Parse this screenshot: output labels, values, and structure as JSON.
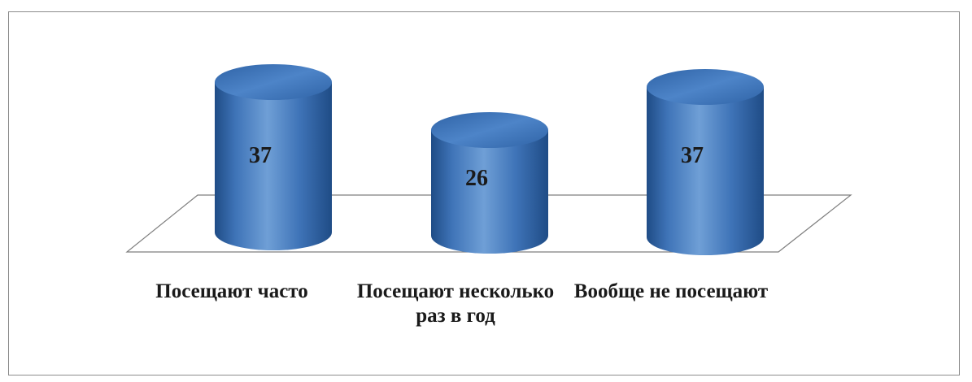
{
  "chart_data": {
    "type": "bar",
    "style": "3d-cylinder",
    "categories": [
      "Посещают часто",
      "Посещают несколько раз в год",
      "Вообще не посещают"
    ],
    "values": [
      37,
      26,
      37
    ],
    "data_labels": [
      "37",
      "26",
      "37"
    ],
    "title": "",
    "xlabel": "",
    "ylabel": "",
    "ylim": [
      0,
      40
    ],
    "grid": false,
    "legend": "none",
    "colors": {
      "bar_light": "#6f9fd6",
      "bar_mid": "#3f74b8",
      "bar_dark": "#1f4c86",
      "top_light": "#4d84c8",
      "top_dark": "#2f63a6",
      "floor_stroke": "#7f7f7f",
      "label": "#1a1a1a"
    }
  }
}
